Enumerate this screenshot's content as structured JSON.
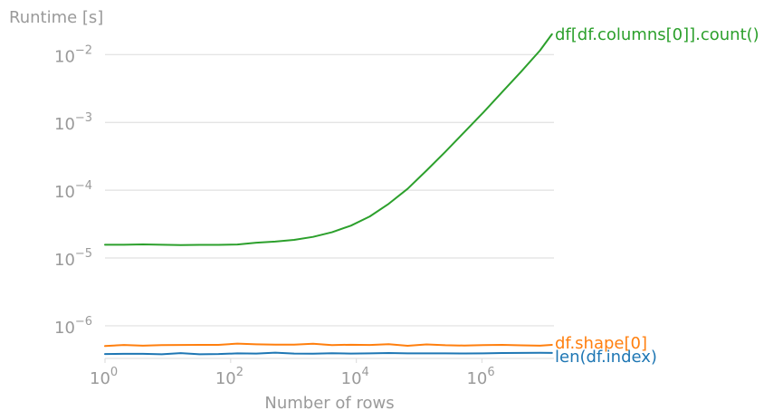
{
  "chart_data": {
    "type": "line",
    "ylabel": "Runtime [s]",
    "xlabel": "Number of rows",
    "x_scale": "log",
    "y_scale": "log",
    "xlim": [
      1,
      14000000
    ],
    "ylim": [
      3.3e-07,
      0.027
    ],
    "grid": "horizontal",
    "x_tick_labels": [
      {
        "value": 1,
        "base": "10",
        "exp": "0"
      },
      {
        "value": 100,
        "base": "10",
        "exp": "2"
      },
      {
        "value": 10000,
        "base": "10",
        "exp": "4"
      },
      {
        "value": 1000000,
        "base": "10",
        "exp": "6"
      }
    ],
    "y_tick_labels": [
      {
        "value": 0.01,
        "base": "10",
        "exp": "−2"
      },
      {
        "value": 0.001,
        "base": "10",
        "exp": "−3"
      },
      {
        "value": 0.0001,
        "base": "10",
        "exp": "−4"
      },
      {
        "value": 1e-05,
        "base": "10",
        "exp": "−5"
      },
      {
        "value": 1e-06,
        "base": "10",
        "exp": "−6"
      }
    ],
    "x": [
      1,
      2,
      4,
      8,
      16,
      32,
      64,
      128,
      256,
      512,
      1024,
      2048,
      4096,
      8192,
      16384,
      32768,
      65536,
      131072,
      262144,
      524288,
      1048576,
      2097152,
      4194304,
      8388608,
      13000000
    ],
    "series": [
      {
        "name": "df[df.columns[0]].count()",
        "color": "#2ca02c",
        "values": [
          1.57e-05,
          1.57e-05,
          1.59e-05,
          1.57e-05,
          1.55e-05,
          1.56e-05,
          1.56e-05,
          1.58e-05,
          1.68e-05,
          1.75e-05,
          1.85e-05,
          2.05e-05,
          2.4e-05,
          3e-05,
          4.1e-05,
          6.3e-05,
          0.000105,
          0.000195,
          0.00037,
          0.00072,
          0.0014,
          0.0028,
          0.0056,
          0.0115,
          0.02
        ]
      },
      {
        "name": "df.shape[0]",
        "color": "#ff7f0e",
        "values": [
          5.03e-07,
          5.22e-07,
          5.1e-07,
          5.2e-07,
          5.22e-07,
          5.23e-07,
          5.24e-07,
          5.46e-07,
          5.33e-07,
          5.27e-07,
          5.27e-07,
          5.43e-07,
          5.2e-07,
          5.26e-07,
          5.21e-07,
          5.35e-07,
          5.08e-07,
          5.32e-07,
          5.17e-07,
          5.11e-07,
          5.2e-07,
          5.24e-07,
          5.15e-07,
          5.1e-07,
          5.24e-07
        ]
      },
      {
        "name": "len(df.index)",
        "color": "#1f77b4",
        "values": [
          3.83e-07,
          3.86e-07,
          3.86e-07,
          3.8e-07,
          3.96e-07,
          3.8e-07,
          3.83e-07,
          3.92e-07,
          3.9e-07,
          4.02e-07,
          3.89e-07,
          3.88e-07,
          3.94e-07,
          3.9e-07,
          3.93e-07,
          3.97e-07,
          3.92e-07,
          3.92e-07,
          3.93e-07,
          3.91e-07,
          3.93e-07,
          3.97e-07,
          3.99e-07,
          4e-07,
          3.98e-07
        ]
      }
    ]
  }
}
